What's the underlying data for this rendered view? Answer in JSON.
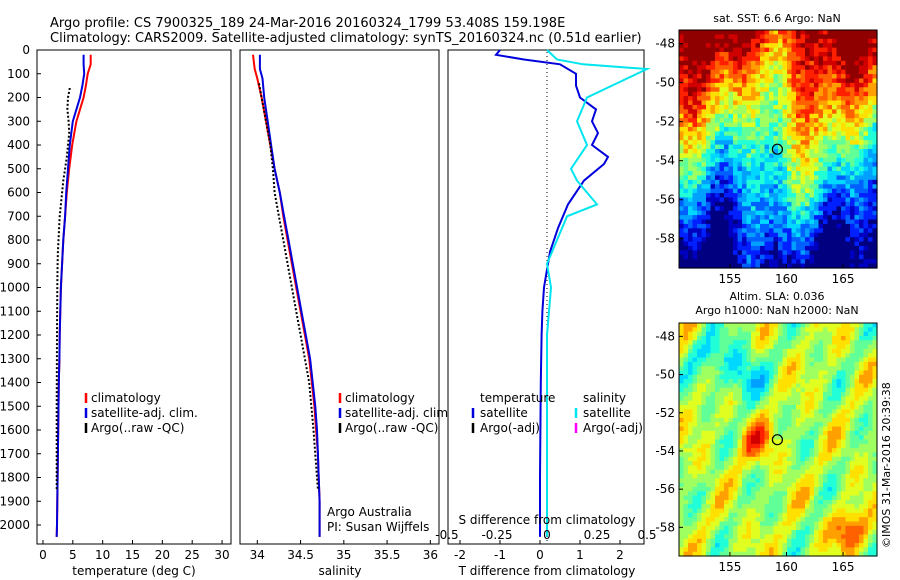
{
  "header": {
    "line1": "Argo profile: CS 7900325_189 24-Mar-2016 20160324_1799 53.408S 159.198E",
    "line2": "Climatology: CARS2009. Satellite-adjusted climatology: synTS_20160324.nc (0.51d earlier)"
  },
  "colors": {
    "climatology": "#ff0000",
    "satellite": "#0000dd",
    "argo": "#000000",
    "salinity_satellite": "#00e5ee",
    "salinity_argo": "#ff00ff"
  },
  "chart_data": [
    {
      "id": "temperature",
      "type": "line",
      "xlabel": "temperature (deg C)",
      "ylabel": "",
      "xlim": [
        -1,
        31.5
      ],
      "ylim": [
        2080,
        0
      ],
      "xticks": [
        0,
        5,
        10,
        15,
        20,
        25,
        30
      ],
      "yticks": [
        0,
        100,
        200,
        300,
        400,
        500,
        600,
        700,
        800,
        900,
        1000,
        1100,
        1200,
        1300,
        1400,
        1500,
        1600,
        1700,
        1800,
        1900,
        2000
      ],
      "legend": [
        "climatology",
        "satellite-adj. clim.",
        "Argo(..raw -QC)"
      ],
      "legend_position": "bottom-center",
      "series": [
        {
          "name": "climatology",
          "color": "#ff0000",
          "x": [
            8.0,
            8.0,
            7.5,
            7.2,
            6.8,
            6.2,
            5.6,
            4.9,
            4.4,
            4.0,
            3.7,
            3.4,
            3.2,
            3.0,
            2.9,
            2.8,
            2.75,
            2.65,
            2.6,
            2.55,
            2.5,
            2.45,
            2.4,
            2.35,
            2.3
          ],
          "y": [
            20,
            60,
            100,
            150,
            200,
            250,
            300,
            400,
            500,
            600,
            700,
            800,
            900,
            1000,
            1100,
            1200,
            1300,
            1400,
            1500,
            1600,
            1700,
            1800,
            1900,
            2000,
            2050
          ]
        },
        {
          "name": "satellite-adj. clim.",
          "color": "#0000dd",
          "x": [
            6.8,
            6.8,
            6.9,
            6.6,
            6.2,
            5.6,
            5.0,
            4.5,
            4.2,
            3.9,
            3.7,
            3.4,
            3.2,
            3.0,
            2.9,
            2.8,
            2.75,
            2.65,
            2.6,
            2.55,
            2.5,
            2.45,
            2.4,
            2.35,
            2.3
          ],
          "y": [
            20,
            60,
            100,
            150,
            200,
            250,
            300,
            400,
            500,
            600,
            700,
            800,
            900,
            1000,
            1100,
            1200,
            1300,
            1400,
            1500,
            1600,
            1700,
            1800,
            1900,
            2000,
            2050
          ]
        },
        {
          "name": "Argo(..raw -QC)",
          "color": "#000000",
          "x": [
            4.5,
            4.2,
            4.1,
            4.3,
            4.4,
            4.2,
            4.0,
            3.7,
            3.4,
            3.2,
            3.0,
            2.8,
            2.7,
            2.6,
            2.5,
            2.45,
            2.4,
            2.35,
            2.3,
            2.3
          ],
          "y": [
            160,
            200,
            250,
            300,
            350,
            400,
            450,
            500,
            550,
            600,
            650,
            700,
            750,
            800,
            850,
            900,
            1000,
            1200,
            1500,
            1850
          ]
        }
      ]
    },
    {
      "id": "salinity",
      "type": "line",
      "xlabel": "salinity",
      "ylabel": "",
      "xlim": [
        33.8,
        36.1
      ],
      "ylim": [
        2080,
        0
      ],
      "xticks": [
        34,
        34.5,
        35,
        35.5,
        36
      ],
      "legend": [
        "climatology",
        "satellite-adj. clim.",
        "Argo(..raw -QC)"
      ],
      "legend_position": "bottom-right",
      "annotations": [
        "Argo Australia",
        "PI: Susan Wijffels"
      ],
      "series": [
        {
          "name": "climatology",
          "color": "#ff0000",
          "x": [
            33.95,
            33.97,
            34.0,
            34.05,
            34.1,
            34.15,
            34.2,
            34.26,
            34.3,
            34.35,
            34.4,
            34.45,
            34.5,
            34.55,
            34.6,
            34.63,
            34.66,
            34.68,
            34.7,
            34.71,
            34.72,
            34.72
          ],
          "y": [
            20,
            80,
            120,
            200,
            300,
            400,
            500,
            600,
            700,
            800,
            900,
            1000,
            1100,
            1200,
            1300,
            1400,
            1500,
            1600,
            1700,
            1800,
            1900,
            2050
          ]
        },
        {
          "name": "satellite-adj. clim.",
          "color": "#0000dd",
          "x": [
            34.03,
            34.03,
            34.06,
            34.08,
            34.12,
            34.16,
            34.2,
            34.26,
            34.31,
            34.36,
            34.41,
            34.46,
            34.51,
            34.56,
            34.61,
            34.64,
            34.67,
            34.69,
            34.7,
            34.71,
            34.72,
            34.72
          ],
          "y": [
            20,
            80,
            120,
            200,
            300,
            400,
            500,
            600,
            700,
            800,
            900,
            1000,
            1100,
            1200,
            1300,
            1400,
            1500,
            1600,
            1700,
            1800,
            1900,
            2050
          ]
        },
        {
          "name": "Argo(..raw -QC)",
          "color": "#000000",
          "x": [
            34.02,
            34.05,
            34.1,
            34.15,
            34.18,
            34.2,
            34.25,
            34.3,
            34.35,
            34.4,
            34.45,
            34.5,
            34.55,
            34.6,
            34.65,
            34.7
          ],
          "y": [
            140,
            200,
            300,
            400,
            500,
            600,
            700,
            800,
            900,
            1000,
            1100,
            1200,
            1300,
            1400,
            1600,
            1850
          ]
        }
      ]
    },
    {
      "id": "difference",
      "type": "line",
      "xlabel": "T difference from climatology",
      "xlabel2": "S difference from climatology",
      "ylabel": "",
      "xlim": [
        -2.3,
        2.6
      ],
      "ylim": [
        2080,
        0
      ],
      "xticks": [
        -2,
        -1,
        0,
        1,
        2
      ],
      "xticks2": [
        -0.5,
        -0.25,
        0,
        0.25,
        0.5
      ],
      "legend_temperature": [
        "temperature",
        "satellite",
        "Argo(-adj)"
      ],
      "legend_salinity": [
        "salinity",
        "satellite",
        "Argo(-adj)"
      ],
      "series": [
        {
          "name": "satellite",
          "group": "temperature",
          "color": "#0000dd",
          "x": [
            -1.0,
            -1.1,
            -0.4,
            0.5,
            0.9,
            0.9,
            1.0,
            1.4,
            1.3,
            1.45,
            1.3,
            1.7,
            1.6,
            1.1,
            0.7,
            0.45,
            0.25,
            0.15,
            0.1,
            0.06,
            0.04,
            0.02,
            0.01,
            0.0,
            0.0,
            0.0
          ],
          "y": [
            0,
            20,
            40,
            60,
            100,
            150,
            200,
            250,
            300,
            350,
            400,
            450,
            480,
            550,
            650,
            750,
            850,
            950,
            1000,
            1100,
            1200,
            1400,
            1600,
            1800,
            2000,
            2050
          ]
        },
        {
          "name": "satellite",
          "group": "salinity",
          "color": "#00e5ee",
          "x": [
            0.0,
            0.05,
            0.18,
            0.5,
            0.4,
            0.2,
            0.15,
            0.2,
            0.12,
            0.15,
            0.25,
            0.1,
            0.05,
            0.0,
            0.02,
            0.0,
            0.0,
            0.0,
            0.0
          ],
          "y": [
            0,
            40,
            60,
            80,
            120,
            200,
            300,
            400,
            500,
            550,
            650,
            700,
            800,
            900,
            1000,
            1200,
            1500,
            1800,
            2050
          ]
        }
      ]
    },
    {
      "id": "sst_map",
      "type": "heatmap",
      "title": "sat. SST: 6.6 Argo: NaN",
      "xticks": [
        155,
        160,
        165
      ],
      "yticks": [
        -48,
        -50,
        -52,
        -54,
        -56,
        -58
      ],
      "xlim": [
        150.5,
        168
      ],
      "ylim": [
        -59.5,
        -47.3
      ],
      "argo_position": [
        159.198,
        -53.408
      ]
    },
    {
      "id": "sla_map",
      "type": "heatmap",
      "title1": "Altim. SLA: 0.036",
      "title2": "Argo h1000: NaN h2000: NaN",
      "xticks": [
        155,
        160,
        165
      ],
      "yticks": [
        -48,
        -50,
        -52,
        -54,
        -56,
        -58
      ],
      "xlim": [
        150.5,
        168
      ],
      "ylim": [
        -59.5,
        -47.3
      ],
      "argo_position": [
        159.198,
        -53.408
      ]
    }
  ],
  "footer": {
    "credit": "©IMOS 31-Mar-2016 20:39:38"
  }
}
